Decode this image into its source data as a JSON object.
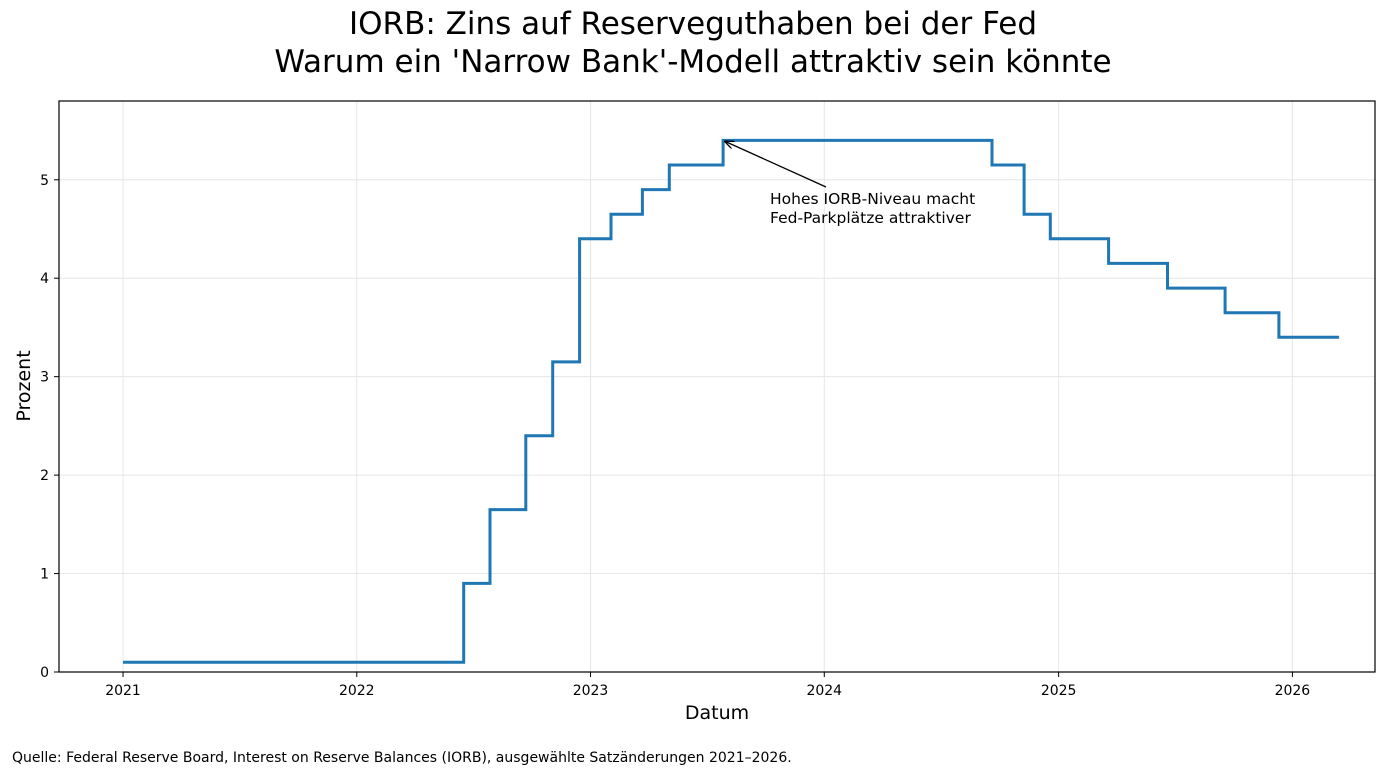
{
  "chart_data": {
    "type": "line",
    "step": true,
    "title": "IORB: Zins auf Reserveguthaben bei der Fed",
    "subtitle": "Warum ein 'Narrow Bank'-Modell attraktiv sein könnte",
    "xlabel": "Datum",
    "ylabel": "Prozent",
    "xlim": [
      "2020-09-23",
      "2026-05-10"
    ],
    "ylim": [
      0,
      5.8
    ],
    "xticks": [
      "2021",
      "2022",
      "2023",
      "2024",
      "2025",
      "2026"
    ],
    "yticks": [
      "0",
      "1",
      "2",
      "3",
      "4",
      "5"
    ],
    "grid": true,
    "color": "#1f77b4",
    "series": [
      {
        "x": [
          "2021-01-01",
          "2022-06-17",
          "2022-07-28",
          "2022-09-22",
          "2022-11-03",
          "2022-12-15",
          "2023-02-02",
          "2023-03-23",
          "2023-05-04",
          "2023-07-27",
          "2024-09-19",
          "2024-11-08",
          "2024-12-19",
          "2025-03-20",
          "2025-06-20",
          "2025-09-18",
          "2025-12-11",
          "2026-03-15"
        ],
        "y": [
          0.1,
          0.9,
          1.65,
          2.4,
          3.15,
          4.4,
          4.65,
          4.9,
          5.15,
          5.4,
          5.15,
          4.65,
          4.4,
          4.15,
          3.9,
          3.65,
          3.4,
          3.4
        ]
      }
    ],
    "annotation": {
      "lines": [
        "Hohes IORB-Niveau macht",
        "Fed-Parkplätze attraktiver"
      ],
      "point": [
        "2023-07-27",
        5.4
      ]
    },
    "source": "Quelle: Federal Reserve Board, Interest on Reserve Balances (IORB), ausgewählte Satzänderungen 2021–2026."
  }
}
